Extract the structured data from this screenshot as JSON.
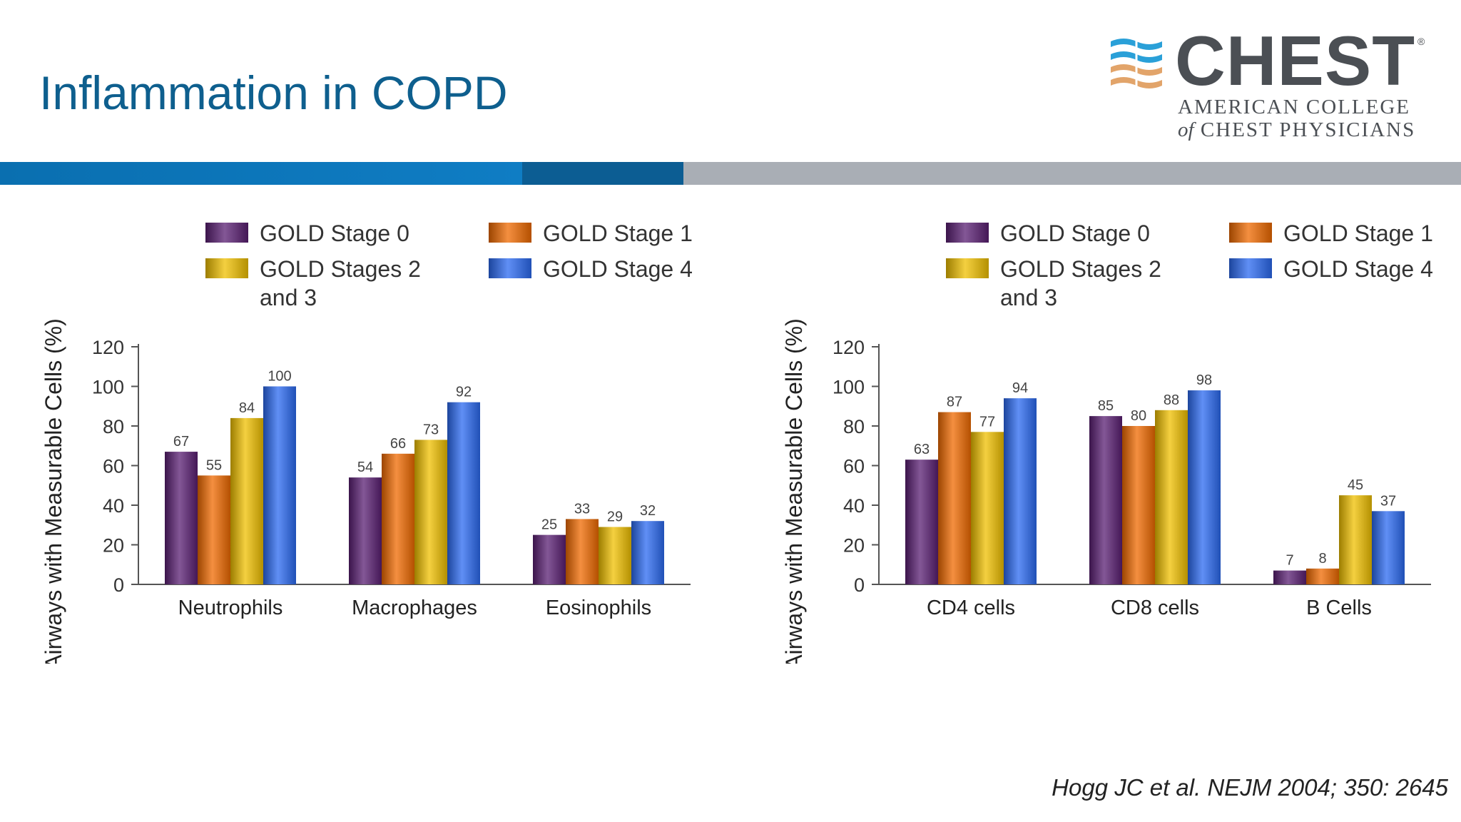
{
  "slide": {
    "title": "Inflammation in COPD",
    "citation": "Hogg JC et al. NEJM 2004; 350: 2645"
  },
  "logo": {
    "name": "CHEST",
    "registered": "®",
    "subtitle_line1": "AMERICAN COLLEGE",
    "subtitle_line2_of": "of",
    "subtitle_line2": "CHEST PHYSICIANS"
  },
  "colors": {
    "title": "#0e5f8e",
    "stage0": "#5a1f73",
    "stage1": "#f06a00",
    "stage23": "#f0c000",
    "stage4": "#2b6af2"
  },
  "chart_data": [
    {
      "type": "bar",
      "title": "",
      "xlabel": "",
      "ylabel": "Airways with Measurable Cells (%)",
      "ylim": [
        0,
        120
      ],
      "yticks": [
        0,
        20,
        40,
        60,
        80,
        100,
        120
      ],
      "categories": [
        "Neutrophils",
        "Macrophages",
        "Eosinophils"
      ],
      "legend_position": "top",
      "series": [
        {
          "name": "GOLD Stage 0",
          "color": "#5a1f73",
          "values": [
            67,
            54,
            25
          ]
        },
        {
          "name": "GOLD Stage 1",
          "color": "#f06a00",
          "values": [
            55,
            66,
            33
          ]
        },
        {
          "name": "GOLD Stages 2 and 3",
          "color": "#f0c000",
          "values": [
            84,
            73,
            29
          ]
        },
        {
          "name": "GOLD Stage 4",
          "color": "#2b6af2",
          "values": [
            100,
            92,
            32
          ]
        }
      ]
    },
    {
      "type": "bar",
      "title": "",
      "xlabel": "",
      "ylabel": "Airways with Measurable Cells (%)",
      "ylim": [
        0,
        120
      ],
      "yticks": [
        0,
        20,
        40,
        60,
        80,
        100,
        120
      ],
      "categories": [
        "CD4 cells",
        "CD8 cells",
        "B Cells"
      ],
      "legend_position": "top",
      "series": [
        {
          "name": "GOLD Stage 0",
          "color": "#5a1f73",
          "values": [
            63,
            85,
            7
          ]
        },
        {
          "name": "GOLD Stage 1",
          "color": "#f06a00",
          "values": [
            87,
            80,
            8
          ]
        },
        {
          "name": "GOLD Stages 2 and 3",
          "color": "#f0c000",
          "values": [
            77,
            88,
            45
          ]
        },
        {
          "name": "GOLD Stage 4",
          "color": "#2b6af2",
          "values": [
            94,
            98,
            37
          ]
        }
      ]
    }
  ]
}
